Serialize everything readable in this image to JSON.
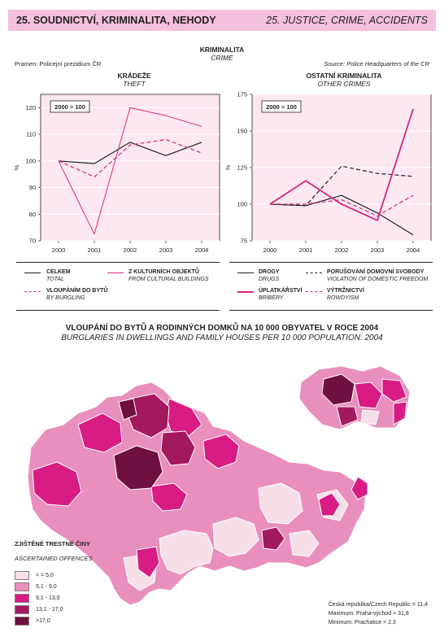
{
  "header": {
    "left": "25. SOUDNICTVÍ, KRIMINALITA, NEHODY",
    "right": "25. JUSTICE, CRIME, ACCIDENTS",
    "band_color": "#f3c1dd"
  },
  "section": {
    "title_cz": "KRIMINALITA",
    "title_en": "CRIME"
  },
  "source_cz": "Pramen: Policejní prezidium ČR",
  "source_en": "Source: Police Headquarters of the CR",
  "chart_data": [
    {
      "type": "line",
      "title": "KRÁDEŽE",
      "subtitle": "THEFT",
      "ylabel": "%",
      "index_label": "2000 = 100",
      "x": [
        "2000",
        "2001",
        "2002",
        "2003",
        "2004"
      ],
      "ylim": [
        70,
        125
      ],
      "yticks": [
        70,
        80,
        90,
        100,
        110,
        120
      ],
      "series": [
        {
          "name": "CELKEM",
          "name_en": "TOTAL",
          "color": "#231f20",
          "dash": "solid",
          "values": [
            100,
            99,
            107,
            102,
            107
          ]
        },
        {
          "name": "VLOUPÁNÍM DO BYTŮ",
          "name_en": "BY BURGLING",
          "color": "#d6257f",
          "dash": "dashed",
          "values": [
            100,
            94,
            106,
            108,
            103
          ]
        },
        {
          "name": "Z KULTURNÍCH OBJEKTŮ",
          "name_en": "FROM CULTURAL BUILDINGS",
          "color": "#d6257f",
          "dash": "thin",
          "values": [
            100,
            72.5,
            120,
            117,
            113
          ]
        }
      ]
    },
    {
      "type": "line",
      "title": "OSTATNÍ KRIMINALITA",
      "subtitle": "OTHER CRIMES",
      "ylabel": "%",
      "index_label": "2000 = 100",
      "x": [
        "2000",
        "2001",
        "2002",
        "2003",
        "2004"
      ],
      "ylim": [
        75,
        175
      ],
      "yticks": [
        75,
        100,
        125,
        150,
        175
      ],
      "series": [
        {
          "name": "DROGY",
          "name_en": "DRUGS",
          "color": "#231f20",
          "dash": "solid",
          "values": [
            100,
            99,
            106,
            94,
            79
          ]
        },
        {
          "name": "PORUŠOVÁNÍ DOMOVNÍ SVOBODY",
          "name_en": "VIOLATION OF DOMESTIC FREEDOM",
          "color": "#231f20",
          "dash": "dashed",
          "values": [
            100,
            99,
            126,
            121,
            119
          ]
        },
        {
          "name": "ÚPLATKÁŘSTVÍ",
          "name_en": "BRIBERY",
          "color": "#d6257f",
          "dash": "thick",
          "values": [
            100,
            116,
            100,
            89,
            165
          ]
        },
        {
          "name": "VÝTRŽNICTVÍ",
          "name_en": "ROWDYISM",
          "color": "#d6257f",
          "dash": "dashed",
          "values": [
            100,
            100,
            103,
            92,
            106
          ]
        }
      ]
    }
  ],
  "map": {
    "title_cz": "VLOUPÁNÍ DO BYTŮ A RODINNÝCH DOMKŮ NA 10 000 OBYVATEL V ROCE 2004",
    "title_en": "BURGLARIES IN DWELLINGS AND FAMILY HOUSES PER 10 000 POPULATION: 2004",
    "legend_title_cz": "ZJIŠTĚNÉ TRESTNÉ ČINY",
    "legend_title_en": "ASCERTAINED OFFENCES",
    "classes": [
      {
        "label": "< = 5,0",
        "color": "#f7dfea"
      },
      {
        "label": "5,1 - 9,0",
        "color": "#e98fbd"
      },
      {
        "label": "9,1 - 13,0",
        "color": "#d81c84"
      },
      {
        "label": "13,1 - 17,0",
        "color": "#a3195e"
      },
      {
        "label": ">17,0",
        "color": "#6e1040"
      }
    ],
    "stats": {
      "line1": "Česká republika/Czech Republic = 11,4",
      "line2": "Maximum: Praha-východ = 31,8",
      "line3": "Minimum: Prachatice = 2,3"
    }
  }
}
